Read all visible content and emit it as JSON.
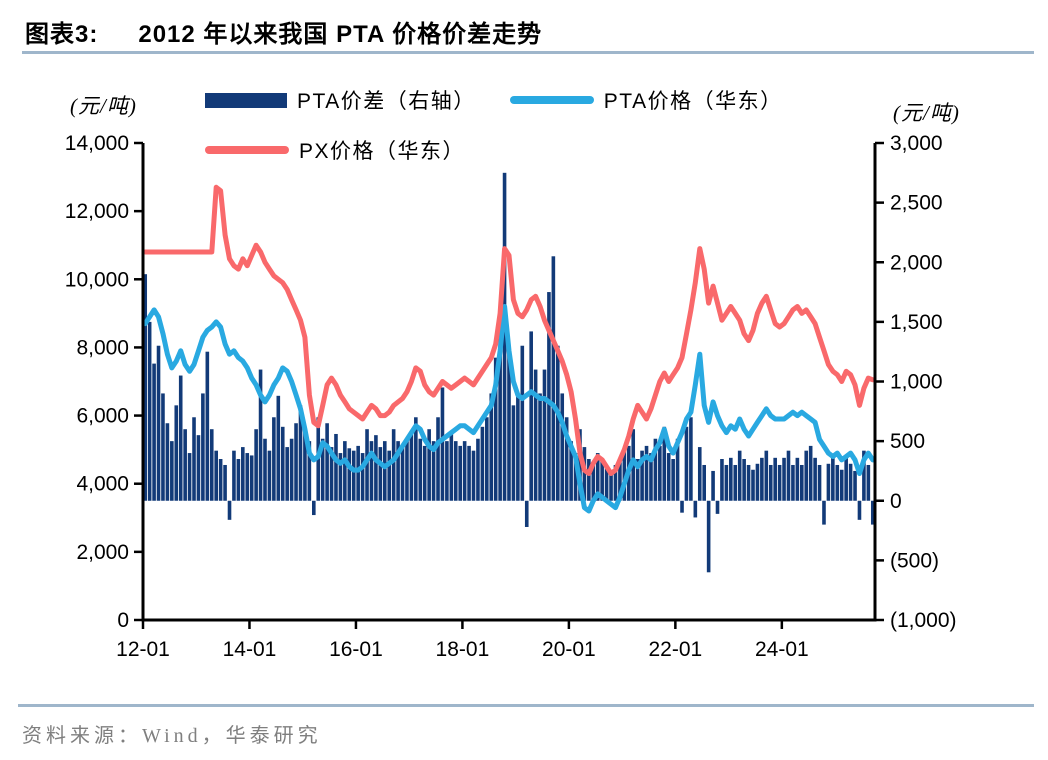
{
  "header": {
    "figure_label": "图表3:",
    "title": "2012 年以来我国 PTA 价格价差走势"
  },
  "legend": {
    "items": [
      {
        "label": "PTA价差（右轴）",
        "type": "bar",
        "color": "#123A78"
      },
      {
        "label": "PTA价格（华东）",
        "type": "line",
        "color": "#29A9E1"
      },
      {
        "label": "PX价格（华东）",
        "type": "line",
        "color": "#F9696B"
      }
    ]
  },
  "left_axis": {
    "unit": "(元/吨)",
    "min": 0,
    "max": 14000,
    "step": 2000,
    "tick_labels": [
      "14,000",
      "12,000",
      "10,000",
      "8,000",
      "6,000",
      "4,000",
      "2,000",
      "0"
    ]
  },
  "right_axis": {
    "unit": "(元/吨)",
    "min": -1000,
    "max": 3000,
    "step": 500,
    "tick_labels": [
      "3,000",
      "2,500",
      "2,000",
      "1,500",
      "1,000",
      "500",
      "0",
      "(500)",
      "(1,000)"
    ]
  },
  "x_axis": {
    "tick_labels": [
      "12-01",
      "14-01",
      "16-01",
      "18-01",
      "20-01",
      "22-01",
      "24-01"
    ],
    "tick_month_indices": [
      0,
      24,
      48,
      72,
      96,
      120,
      144
    ]
  },
  "footer": {
    "source": "资料来源：Wind，华泰研究"
  },
  "colors": {
    "bar_navy": "#123A78",
    "pta_blue": "#29A9E1",
    "px_red": "#F9696B",
    "rule_blue": "#9FB6CB",
    "source_gray": "#7F7F7F",
    "axis_black": "#000000"
  },
  "chart_data": {
    "type": "combo",
    "title": "2012 年以来我国 PTA 价格价差走势",
    "x_start": "2012-01",
    "x_interval": "monthly",
    "left_ylim": [
      0,
      14000
    ],
    "right_ylim": [
      -1000,
      3000
    ],
    "grid": false,
    "legend_position": "top",
    "series": [
      {
        "name": "PTA价差（右轴）",
        "type": "bar",
        "axis": "right",
        "color": "#123A78",
        "values": [
          1900,
          1500,
          1150,
          1300,
          900,
          650,
          500,
          800,
          1050,
          600,
          400,
          700,
          550,
          900,
          1250,
          600,
          420,
          350,
          300,
          -160,
          420,
          350,
          450,
          400,
          380,
          600,
          1100,
          520,
          420,
          700,
          880,
          620,
          450,
          520,
          650,
          800,
          600,
          500,
          -120,
          700,
          520,
          650,
          450,
          560,
          400,
          500,
          440,
          420,
          460,
          400,
          600,
          500,
          550,
          450,
          500,
          420,
          600,
          500,
          450,
          520,
          560,
          700,
          520,
          460,
          600,
          500,
          700,
          950,
          500,
          560,
          500,
          460,
          500,
          460,
          420,
          520,
          620,
          700,
          900,
          1200,
          1600,
          2750,
          1250,
          800,
          900,
          1300,
          -220,
          1420,
          1100,
          900,
          1100,
          1750,
          2050,
          1300,
          900,
          700,
          500,
          400,
          600,
          450,
          350,
          300,
          400,
          350,
          300,
          250,
          300,
          350,
          420,
          460,
          600,
          350,
          420,
          460,
          400,
          520,
          460,
          620,
          400,
          350,
          520,
          -100,
          620,
          700,
          -140,
          450,
          300,
          -600,
          250,
          -110,
          350,
          300,
          360,
          300,
          420,
          350,
          300,
          260,
          310,
          360,
          420,
          300,
          360,
          300,
          360,
          420,
          300,
          360,
          300,
          420,
          460,
          360,
          300,
          -200,
          310,
          360,
          300,
          260,
          360,
          310,
          250,
          -160,
          420,
          300,
          -200
        ]
      },
      {
        "name": "PTA价格（华东）",
        "type": "line",
        "axis": "left",
        "color": "#29A9E1",
        "values": [
          8700,
          8900,
          9100,
          8900,
          8400,
          7800,
          7400,
          7600,
          7900,
          7500,
          7300,
          7500,
          7900,
          8300,
          8500,
          8600,
          8750,
          8600,
          8100,
          7800,
          7900,
          7700,
          7600,
          7400,
          7100,
          6900,
          6600,
          6400,
          6600,
          6900,
          7100,
          7400,
          7300,
          7000,
          6600,
          6200,
          5600,
          4900,
          4700,
          4800,
          5200,
          5100,
          4900,
          4700,
          4600,
          4700,
          4500,
          4400,
          4400,
          4500,
          4700,
          4900,
          4700,
          4600,
          4500,
          4600,
          4700,
          4900,
          5100,
          5300,
          5500,
          5700,
          5600,
          5300,
          5100,
          5000,
          5200,
          5300,
          5400,
          5500,
          5600,
          5700,
          5700,
          5600,
          5500,
          5700,
          5900,
          6100,
          6300,
          6900,
          7900,
          9200,
          7900,
          7000,
          6600,
          6500,
          6600,
          6700,
          6600,
          6500,
          6500,
          6400,
          6300,
          6100,
          5800,
          5400,
          5100,
          4800,
          4000,
          3300,
          3200,
          3500,
          3700,
          3600,
          3500,
          3400,
          3300,
          3600,
          4000,
          4400,
          4700,
          4500,
          4700,
          4800,
          4700,
          5000,
          5200,
          5600,
          5100,
          4900,
          5200,
          5500,
          5900,
          6100,
          6900,
          7800,
          6300,
          5800,
          6400,
          6000,
          5700,
          5500,
          5700,
          5600,
          5900,
          5600,
          5400,
          5600,
          5800,
          6000,
          6200,
          6000,
          5900,
          5900,
          5900,
          6000,
          6100,
          6000,
          6100,
          6000,
          5900,
          5800,
          5300,
          5100,
          4900,
          4800,
          4900,
          4700,
          4800,
          4900,
          4700,
          4300,
          4700,
          4900,
          4700
        ]
      },
      {
        "name": "PX价格（华东）",
        "type": "line",
        "axis": "left",
        "color": "#F9696B",
        "values": [
          10800,
          10800,
          10800,
          10800,
          10800,
          10800,
          10800,
          10800,
          10800,
          10800,
          10800,
          10800,
          10800,
          10800,
          10800,
          10800,
          12700,
          12600,
          11300,
          10600,
          10400,
          10300,
          10600,
          10400,
          10700,
          11000,
          10800,
          10500,
          10300,
          10100,
          10000,
          9900,
          9700,
          9400,
          9100,
          8800,
          8300,
          6600,
          5800,
          5700,
          6300,
          6900,
          7100,
          6900,
          6600,
          6400,
          6200,
          6100,
          6000,
          5900,
          6100,
          6300,
          6200,
          6000,
          6000,
          6100,
          6300,
          6400,
          6500,
          6700,
          7000,
          7400,
          7300,
          6900,
          6700,
          6600,
          6800,
          7000,
          6900,
          6800,
          6900,
          7000,
          7100,
          7000,
          6900,
          7100,
          7300,
          7500,
          7700,
          8100,
          9000,
          10900,
          10700,
          9400,
          9000,
          8900,
          9100,
          9400,
          9500,
          9200,
          8800,
          8500,
          8200,
          7900,
          7600,
          7200,
          6700,
          5900,
          4900,
          4400,
          4300,
          4600,
          4800,
          4700,
          4500,
          4300,
          4400,
          4700,
          5000,
          5400,
          5900,
          6300,
          6100,
          5900,
          6200,
          6600,
          7000,
          7250,
          7000,
          7200,
          7400,
          7700,
          8400,
          9100,
          9900,
          10900,
          10300,
          9300,
          9800,
          9300,
          8800,
          9000,
          9200,
          9000,
          8800,
          8400,
          8200,
          8500,
          9000,
          9300,
          9500,
          9100,
          8700,
          8600,
          8700,
          8900,
          9100,
          9200,
          9000,
          9100,
          8900,
          8700,
          8300,
          7900,
          7500,
          7300,
          7200,
          7000,
          7300,
          7200,
          6900,
          6300,
          6800,
          7100,
          7050
        ]
      }
    ]
  }
}
